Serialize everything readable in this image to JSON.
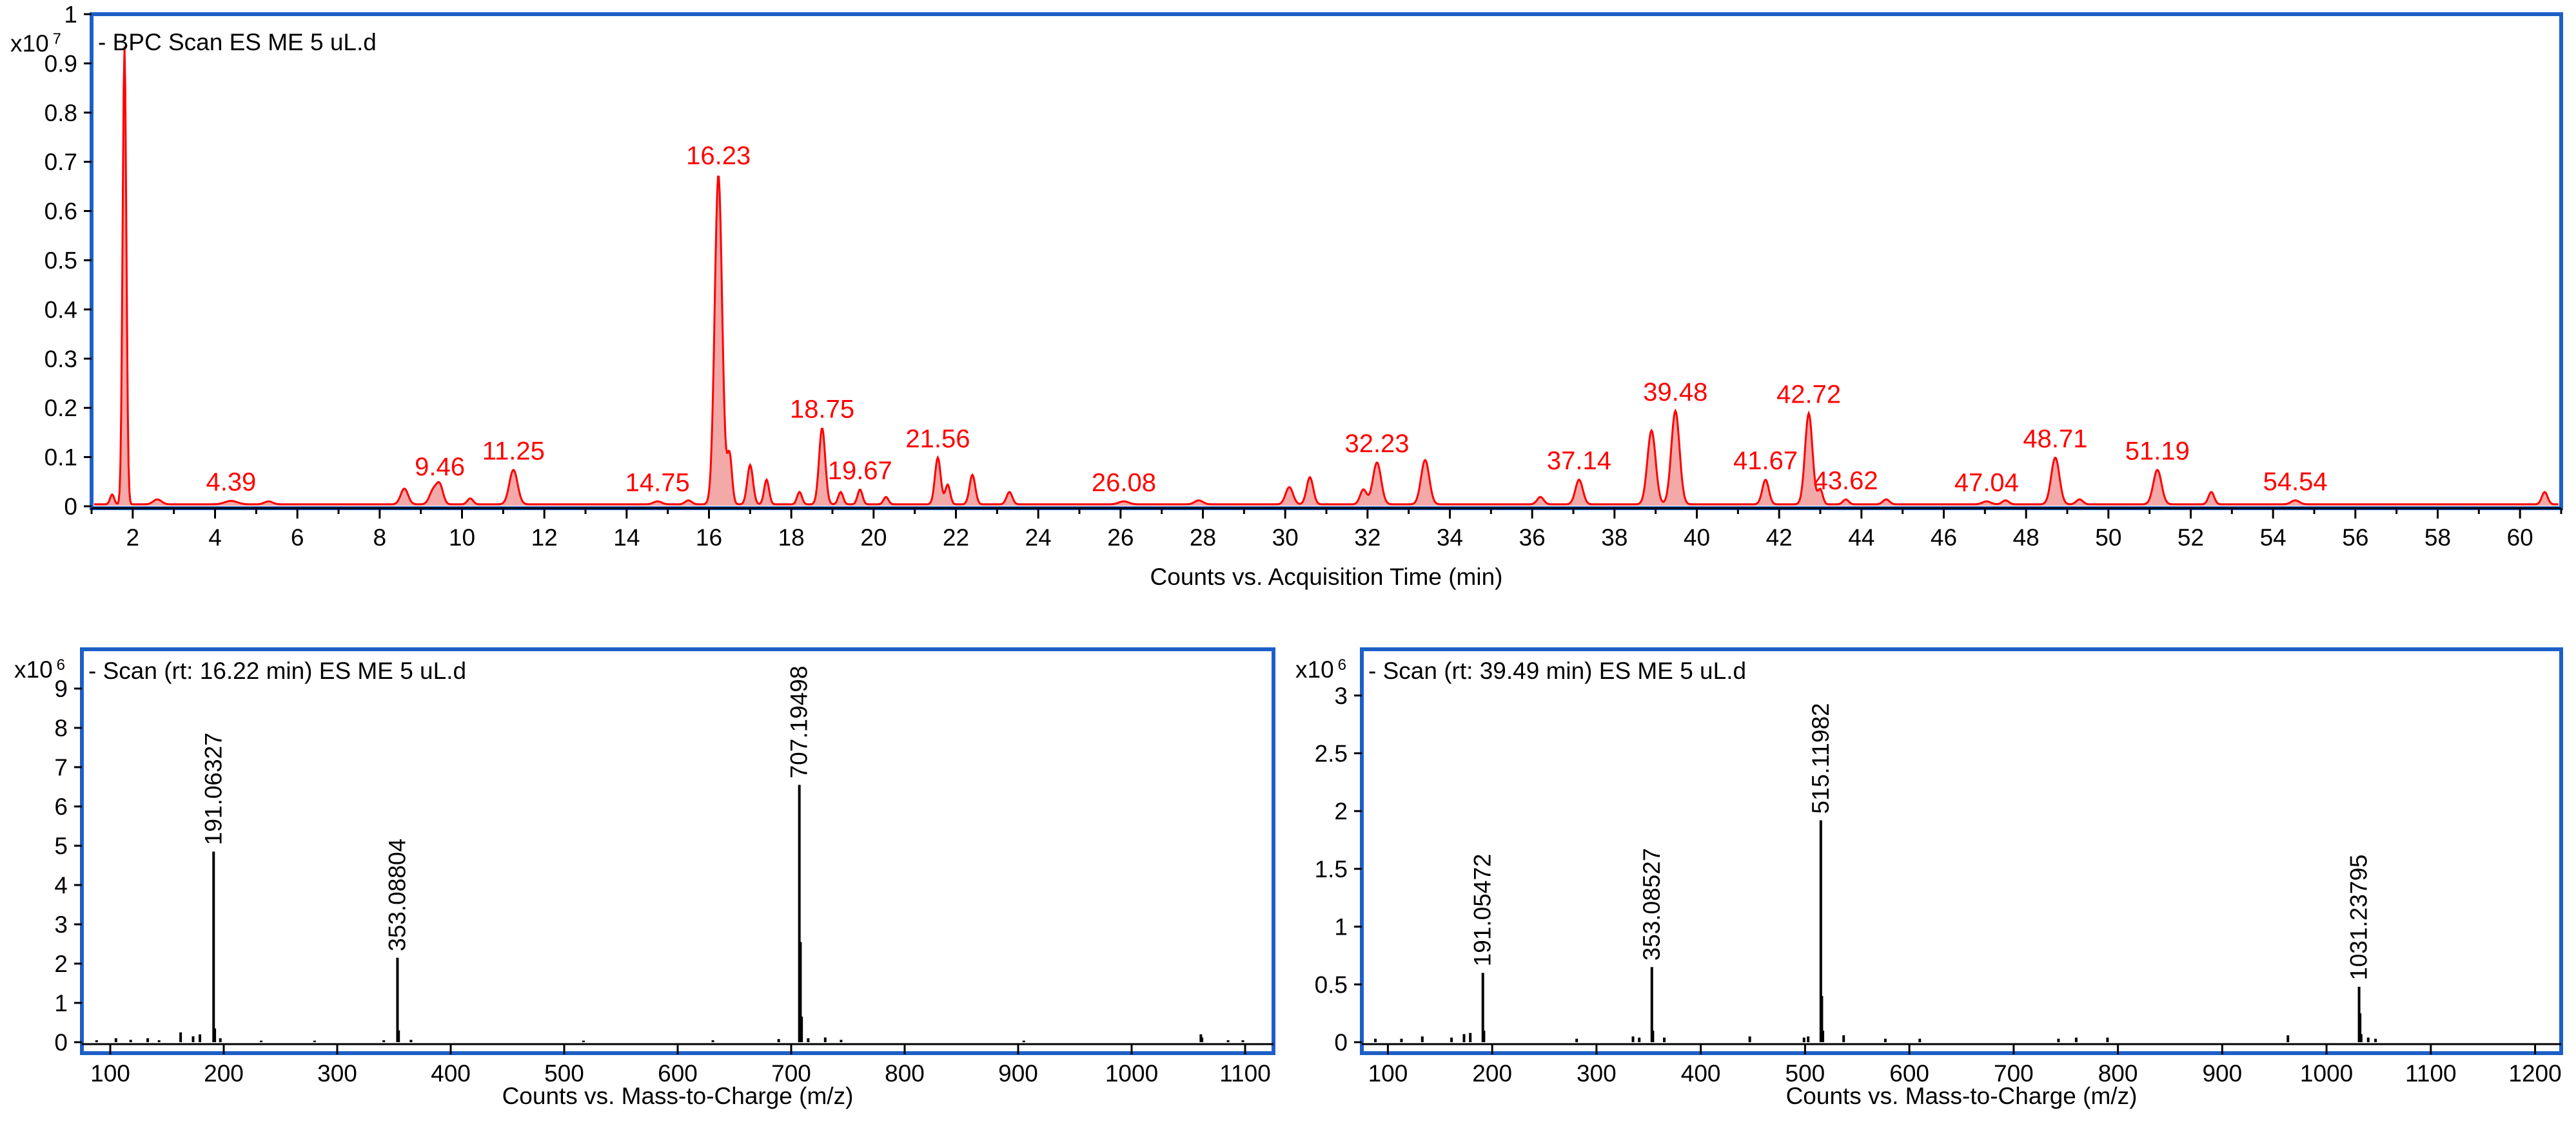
{
  "chart_data": [
    {
      "type": "line",
      "id": "bpc",
      "title": "- BPC Scan ES ME 5 uL.d",
      "xlabel": "Counts vs. Acquisition Time (min)",
      "ylabel": "",
      "scale_base": "x10",
      "scale_exp": "7",
      "xlim": [
        1.0,
        61.0
      ],
      "ylim": [
        0,
        1.0
      ],
      "xticks": [
        2,
        4,
        6,
        8,
        10,
        12,
        14,
        16,
        18,
        20,
        22,
        24,
        26,
        28,
        30,
        32,
        34,
        36,
        38,
        40,
        42,
        44,
        46,
        48,
        50,
        52,
        54,
        56,
        58,
        60
      ],
      "yticks": [
        0,
        0.1,
        0.2,
        0.3,
        0.4,
        0.5,
        0.6,
        0.7,
        0.8,
        0.9,
        1
      ],
      "ytick_labels": [
        "0",
        "0.1",
        "0.2",
        "0.3",
        "0.4",
        "0.5",
        "0.6",
        "0.7",
        "0.8",
        "0.9",
        "1"
      ],
      "color": "#ff0000",
      "fill_color": "#f4a9a9",
      "baseline": 0.004,
      "peaks": [
        {
          "rt": 1.5,
          "h": 0.02,
          "w": 0.05
        },
        {
          "rt": 1.8,
          "h": 0.93,
          "w": 0.045
        },
        {
          "rt": 2.6,
          "h": 0.01,
          "w": 0.1
        },
        {
          "rt": 4.39,
          "h": 0.007,
          "w": 0.15
        },
        {
          "rt": 5.3,
          "h": 0.006,
          "w": 0.1
        },
        {
          "rt": 8.6,
          "h": 0.032,
          "w": 0.09
        },
        {
          "rt": 9.3,
          "h": 0.028,
          "w": 0.09
        },
        {
          "rt": 9.46,
          "h": 0.038,
          "w": 0.08
        },
        {
          "rt": 10.2,
          "h": 0.012,
          "w": 0.07
        },
        {
          "rt": 11.25,
          "h": 0.07,
          "w": 0.1
        },
        {
          "rt": 14.75,
          "h": 0.006,
          "w": 0.1
        },
        {
          "rt": 15.5,
          "h": 0.008,
          "w": 0.08
        },
        {
          "rt": 16.23,
          "h": 0.67,
          "w": 0.09
        },
        {
          "rt": 16.5,
          "h": 0.1,
          "w": 0.06
        },
        {
          "rt": 17.0,
          "h": 0.08,
          "w": 0.07
        },
        {
          "rt": 17.4,
          "h": 0.05,
          "w": 0.06
        },
        {
          "rt": 18.2,
          "h": 0.025,
          "w": 0.06
        },
        {
          "rt": 18.75,
          "h": 0.155,
          "w": 0.075
        },
        {
          "rt": 19.2,
          "h": 0.025,
          "w": 0.06
        },
        {
          "rt": 19.67,
          "h": 0.03,
          "w": 0.06
        },
        {
          "rt": 20.3,
          "h": 0.015,
          "w": 0.06
        },
        {
          "rt": 21.56,
          "h": 0.095,
          "w": 0.07
        },
        {
          "rt": 21.8,
          "h": 0.04,
          "w": 0.06
        },
        {
          "rt": 22.4,
          "h": 0.06,
          "w": 0.07
        },
        {
          "rt": 23.3,
          "h": 0.025,
          "w": 0.07
        },
        {
          "rt": 26.08,
          "h": 0.006,
          "w": 0.12
        },
        {
          "rt": 27.9,
          "h": 0.008,
          "w": 0.1
        },
        {
          "rt": 30.1,
          "h": 0.035,
          "w": 0.09
        },
        {
          "rt": 30.6,
          "h": 0.055,
          "w": 0.08
        },
        {
          "rt": 31.9,
          "h": 0.03,
          "w": 0.08
        },
        {
          "rt": 32.23,
          "h": 0.085,
          "w": 0.1
        },
        {
          "rt": 33.4,
          "h": 0.09,
          "w": 0.1
        },
        {
          "rt": 36.2,
          "h": 0.015,
          "w": 0.08
        },
        {
          "rt": 37.14,
          "h": 0.05,
          "w": 0.09
        },
        {
          "rt": 38.9,
          "h": 0.15,
          "w": 0.1
        },
        {
          "rt": 39.48,
          "h": 0.19,
          "w": 0.1
        },
        {
          "rt": 41.67,
          "h": 0.05,
          "w": 0.08
        },
        {
          "rt": 42.72,
          "h": 0.185,
          "w": 0.09
        },
        {
          "rt": 43.0,
          "h": 0.03,
          "w": 0.06
        },
        {
          "rt": 43.62,
          "h": 0.01,
          "w": 0.07
        },
        {
          "rt": 44.6,
          "h": 0.01,
          "w": 0.08
        },
        {
          "rt": 47.04,
          "h": 0.006,
          "w": 0.1
        },
        {
          "rt": 47.5,
          "h": 0.008,
          "w": 0.08
        },
        {
          "rt": 48.71,
          "h": 0.095,
          "w": 0.1
        },
        {
          "rt": 49.3,
          "h": 0.01,
          "w": 0.08
        },
        {
          "rt": 51.19,
          "h": 0.07,
          "w": 0.1
        },
        {
          "rt": 52.5,
          "h": 0.025,
          "w": 0.07
        },
        {
          "rt": 54.54,
          "h": 0.008,
          "w": 0.1
        },
        {
          "rt": 60.6,
          "h": 0.025,
          "w": 0.07
        }
      ],
      "labels": [
        {
          "x": 4.39,
          "y": 0.007,
          "text": "4.39"
        },
        {
          "x": 9.46,
          "y": 0.038,
          "text": "9.46"
        },
        {
          "x": 11.25,
          "y": 0.07,
          "text": "11.25"
        },
        {
          "x": 14.75,
          "y": 0.006,
          "text": "14.75"
        },
        {
          "x": 16.23,
          "y": 0.67,
          "text": "16.23"
        },
        {
          "x": 18.75,
          "y": 0.155,
          "text": "18.75"
        },
        {
          "x": 19.67,
          "y": 0.03,
          "text": "19.67"
        },
        {
          "x": 21.56,
          "y": 0.095,
          "text": "21.56"
        },
        {
          "x": 26.08,
          "y": 0.006,
          "text": "26.08"
        },
        {
          "x": 32.23,
          "y": 0.085,
          "text": "32.23"
        },
        {
          "x": 37.14,
          "y": 0.05,
          "text": "37.14"
        },
        {
          "x": 39.48,
          "y": 0.19,
          "text": "39.48"
        },
        {
          "x": 41.67,
          "y": 0.05,
          "text": "41.67"
        },
        {
          "x": 42.72,
          "y": 0.185,
          "text": "42.72"
        },
        {
          "x": 43.62,
          "y": 0.01,
          "text": "43.62"
        },
        {
          "x": 47.04,
          "y": 0.006,
          "text": "47.04"
        },
        {
          "x": 48.71,
          "y": 0.095,
          "text": "48.71"
        },
        {
          "x": 51.19,
          "y": 0.07,
          "text": "51.19"
        },
        {
          "x": 54.54,
          "y": 0.008,
          "text": "54.54"
        }
      ]
    },
    {
      "type": "bar",
      "id": "ms1",
      "title": "- Scan (rt: 16.22 min) ES ME 5 uL.d",
      "xlabel": "Counts vs. Mass-to-Charge (m/z)",
      "ylabel": "",
      "scale_base": "x10",
      "scale_exp": "6",
      "xlim": [
        75,
        1125
      ],
      "ylim": [
        0,
        10
      ],
      "xticks": [
        100,
        200,
        300,
        400,
        500,
        600,
        700,
        800,
        900,
        1000,
        1100
      ],
      "yticks": [
        0,
        1,
        2,
        3,
        4,
        5,
        6,
        7,
        8,
        9
      ],
      "ytick_labels": [
        "0",
        "1",
        "2",
        "3",
        "4",
        "5",
        "6",
        "7",
        "8",
        "9"
      ],
      "color": "#000000",
      "peaks": [
        {
          "mz": 88,
          "i": 0.05
        },
        {
          "mz": 105,
          "i": 0.1
        },
        {
          "mz": 118,
          "i": 0.06
        },
        {
          "mz": 133,
          "i": 0.1
        },
        {
          "mz": 143,
          "i": 0.05
        },
        {
          "mz": 162,
          "i": 0.25
        },
        {
          "mz": 173,
          "i": 0.15
        },
        {
          "mz": 179,
          "i": 0.2
        },
        {
          "mz": 191.06327,
          "i": 4.85
        },
        {
          "mz": 192.1,
          "i": 0.35
        },
        {
          "mz": 197,
          "i": 0.1
        },
        {
          "mz": 233,
          "i": 0.04
        },
        {
          "mz": 280,
          "i": 0.04
        },
        {
          "mz": 341,
          "i": 0.05
        },
        {
          "mz": 353.08804,
          "i": 2.15
        },
        {
          "mz": 354.1,
          "i": 0.3
        },
        {
          "mz": 365,
          "i": 0.06
        },
        {
          "mz": 517,
          "i": 0.04
        },
        {
          "mz": 631,
          "i": 0.05
        },
        {
          "mz": 689,
          "i": 0.08
        },
        {
          "mz": 707.19498,
          "i": 6.55
        },
        {
          "mz": 708.2,
          "i": 2.55
        },
        {
          "mz": 709.2,
          "i": 0.65
        },
        {
          "mz": 715,
          "i": 0.1
        },
        {
          "mz": 730,
          "i": 0.12
        },
        {
          "mz": 744,
          "i": 0.06
        },
        {
          "mz": 905,
          "i": 0.04
        },
        {
          "mz": 1061,
          "i": 0.2
        },
        {
          "mz": 1062,
          "i": 0.12
        },
        {
          "mz": 1085,
          "i": 0.05
        },
        {
          "mz": 1098,
          "i": 0.05
        }
      ],
      "labels": [
        {
          "x": 191.06327,
          "y": 4.85,
          "text": "191.06327"
        },
        {
          "x": 353.08804,
          "y": 2.15,
          "text": "353.08804"
        },
        {
          "x": 707.19498,
          "y": 6.55,
          "text": "707.19498"
        }
      ]
    },
    {
      "type": "bar",
      "id": "ms2",
      "title": "- Scan (rt: 39.49 min) ES ME 5 uL.d",
      "xlabel": "Counts vs. Mass-to-Charge (m/z)",
      "ylabel": "",
      "scale_base": "x10",
      "scale_exp": "6",
      "xlim": [
        75,
        1225
      ],
      "ylim": [
        0,
        3.4
      ],
      "xticks": [
        100,
        200,
        300,
        400,
        500,
        600,
        700,
        800,
        900,
        1000,
        1100,
        1200
      ],
      "yticks": [
        0,
        0.5,
        1,
        1.5,
        2,
        2.5,
        3
      ],
      "ytick_labels": [
        "0",
        "0.5",
        "1",
        "1.5",
        "2",
        "2.5",
        "3"
      ],
      "color": "#000000",
      "peaks": [
        {
          "mz": 88,
          "i": 0.03
        },
        {
          "mz": 113,
          "i": 0.03
        },
        {
          "mz": 133,
          "i": 0.05
        },
        {
          "mz": 161,
          "i": 0.04
        },
        {
          "mz": 173,
          "i": 0.07
        },
        {
          "mz": 179,
          "i": 0.08
        },
        {
          "mz": 191.05472,
          "i": 0.6
        },
        {
          "mz": 192.1,
          "i": 0.1
        },
        {
          "mz": 281,
          "i": 0.03
        },
        {
          "mz": 335,
          "i": 0.05
        },
        {
          "mz": 341,
          "i": 0.04
        },
        {
          "mz": 353.08527,
          "i": 0.65
        },
        {
          "mz": 354.1,
          "i": 0.1
        },
        {
          "mz": 365,
          "i": 0.04
        },
        {
          "mz": 447,
          "i": 0.05
        },
        {
          "mz": 499,
          "i": 0.04
        },
        {
          "mz": 503,
          "i": 0.05
        },
        {
          "mz": 515.11982,
          "i": 1.92
        },
        {
          "mz": 516.1,
          "i": 0.4
        },
        {
          "mz": 517.1,
          "i": 0.1
        },
        {
          "mz": 537,
          "i": 0.06
        },
        {
          "mz": 577,
          "i": 0.03
        },
        {
          "mz": 610,
          "i": 0.03
        },
        {
          "mz": 743,
          "i": 0.03
        },
        {
          "mz": 760,
          "i": 0.04
        },
        {
          "mz": 790,
          "i": 0.04
        },
        {
          "mz": 963,
          "i": 0.06
        },
        {
          "mz": 1031.23795,
          "i": 0.48
        },
        {
          "mz": 1032.2,
          "i": 0.25
        },
        {
          "mz": 1033.2,
          "i": 0.07
        },
        {
          "mz": 1040,
          "i": 0.04
        },
        {
          "mz": 1047,
          "i": 0.03
        }
      ],
      "labels": [
        {
          "x": 191.05472,
          "y": 0.6,
          "text": "191.05472"
        },
        {
          "x": 353.08527,
          "y": 0.65,
          "text": "353.08527"
        },
        {
          "x": 515.11982,
          "y": 1.92,
          "text": "515.11982"
        },
        {
          "x": 1031.23795,
          "y": 0.48,
          "text": "1031.23795"
        }
      ]
    }
  ]
}
